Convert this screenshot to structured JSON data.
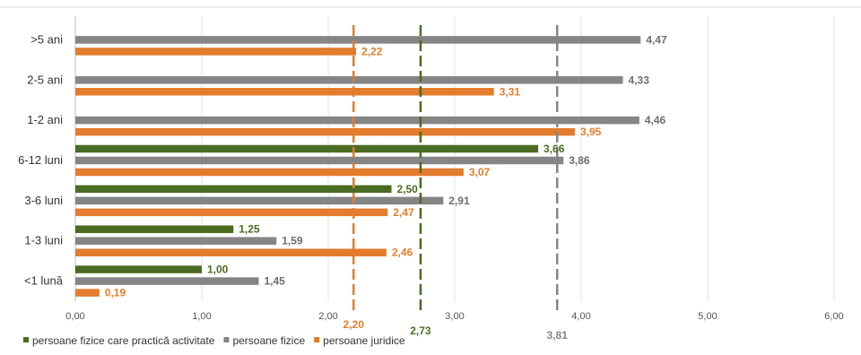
{
  "chart_data": {
    "type": "bar",
    "orientation": "horizontal",
    "categories": [
      "<1 lună",
      "1-3 luni",
      "3-6 luni",
      "6-12 luni",
      "1-2 ani",
      "2-5 ani",
      ">5 ani"
    ],
    "series": [
      {
        "name": "persoane fizice care practică activitate",
        "color": "#4a6b22",
        "values": [
          1.0,
          1.25,
          2.5,
          3.66,
          null,
          null,
          null
        ],
        "labels": [
          "1,00",
          "1,25",
          "2,50",
          "3,66",
          "",
          "",
          ""
        ]
      },
      {
        "name": "persoane fizice",
        "color": "#858585",
        "values": [
          1.45,
          1.59,
          2.91,
          3.86,
          4.46,
          4.33,
          4.47
        ],
        "labels": [
          "1,45",
          "1,59",
          "2,91",
          "3,86",
          "4,46",
          "4,33",
          "4,47"
        ]
      },
      {
        "name": "persoane juridice",
        "color": "#e47c2d",
        "values": [
          0.19,
          2.46,
          2.47,
          3.07,
          3.95,
          3.31,
          2.22
        ],
        "labels": [
          "0,19",
          "2,46",
          "2,47",
          "3,07",
          "3,95",
          "3,31",
          "2,22"
        ]
      }
    ],
    "reference_lines": [
      {
        "value": 2.2,
        "label": "2,20",
        "color": "#e47c2d"
      },
      {
        "value": 2.73,
        "label": "2,73",
        "color": "#4a6b22"
      },
      {
        "value": 3.81,
        "label": "3,81",
        "color": "#858585"
      }
    ],
    "xlim": [
      0,
      6
    ],
    "xticks": [
      0,
      1,
      2,
      3,
      4,
      5,
      6
    ],
    "xtick_labels": [
      "0,00",
      "1,00",
      "2,00",
      "3,00",
      "4,00",
      "5,00",
      "6,00"
    ],
    "grid": true,
    "legend_position": "bottom-left"
  }
}
